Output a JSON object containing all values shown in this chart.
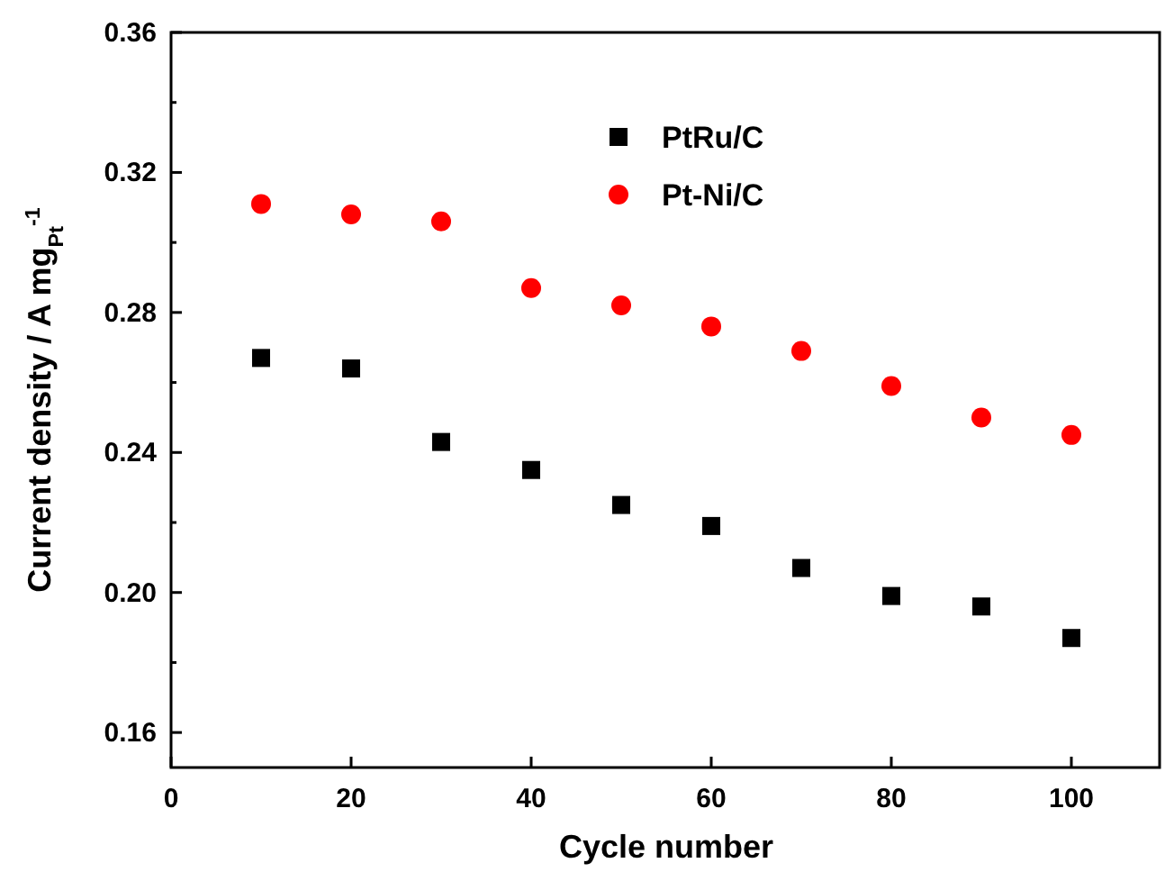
{
  "chart_data": {
    "type": "scatter",
    "xlabel": "Cycle number",
    "ylabel": "Current density / A mg$_{Pt}$$^{-1}$",
    "x": [
      10,
      20,
      30,
      40,
      50,
      60,
      70,
      80,
      90,
      100
    ],
    "series": [
      {
        "name": "PtRu/C",
        "color": "#000000",
        "marker": "square",
        "values": [
          0.267,
          0.264,
          0.243,
          0.235,
          0.225,
          0.219,
          0.207,
          0.199,
          0.196,
          0.187
        ]
      },
      {
        "name": "Pt-Ni/C",
        "color": "#ff0000",
        "marker": "circle",
        "values": [
          0.311,
          0.308,
          0.306,
          0.287,
          0.282,
          0.276,
          0.269,
          0.259,
          0.25,
          0.245
        ]
      }
    ],
    "xlim": [
      0,
      110
    ],
    "xticks": [
      0,
      20,
      40,
      60,
      80,
      100
    ],
    "ylim": [
      0.15,
      0.36
    ],
    "yticks": [
      {
        "value": 0.16,
        "label": "0.16"
      },
      {
        "value": 0.18,
        "label": null
      },
      {
        "value": 0.2,
        "label": "0.20"
      },
      {
        "value": 0.22,
        "label": null
      },
      {
        "value": 0.24,
        "label": "0.24"
      },
      {
        "value": 0.26,
        "label": null
      },
      {
        "value": 0.28,
        "label": "0.28"
      },
      {
        "value": 0.3,
        "label": null
      },
      {
        "value": 0.32,
        "label": "0.32"
      },
      {
        "value": 0.34,
        "label": null
      },
      {
        "value": 0.36,
        "label": "0.36"
      }
    ],
    "grid": false,
    "legend": "top"
  }
}
